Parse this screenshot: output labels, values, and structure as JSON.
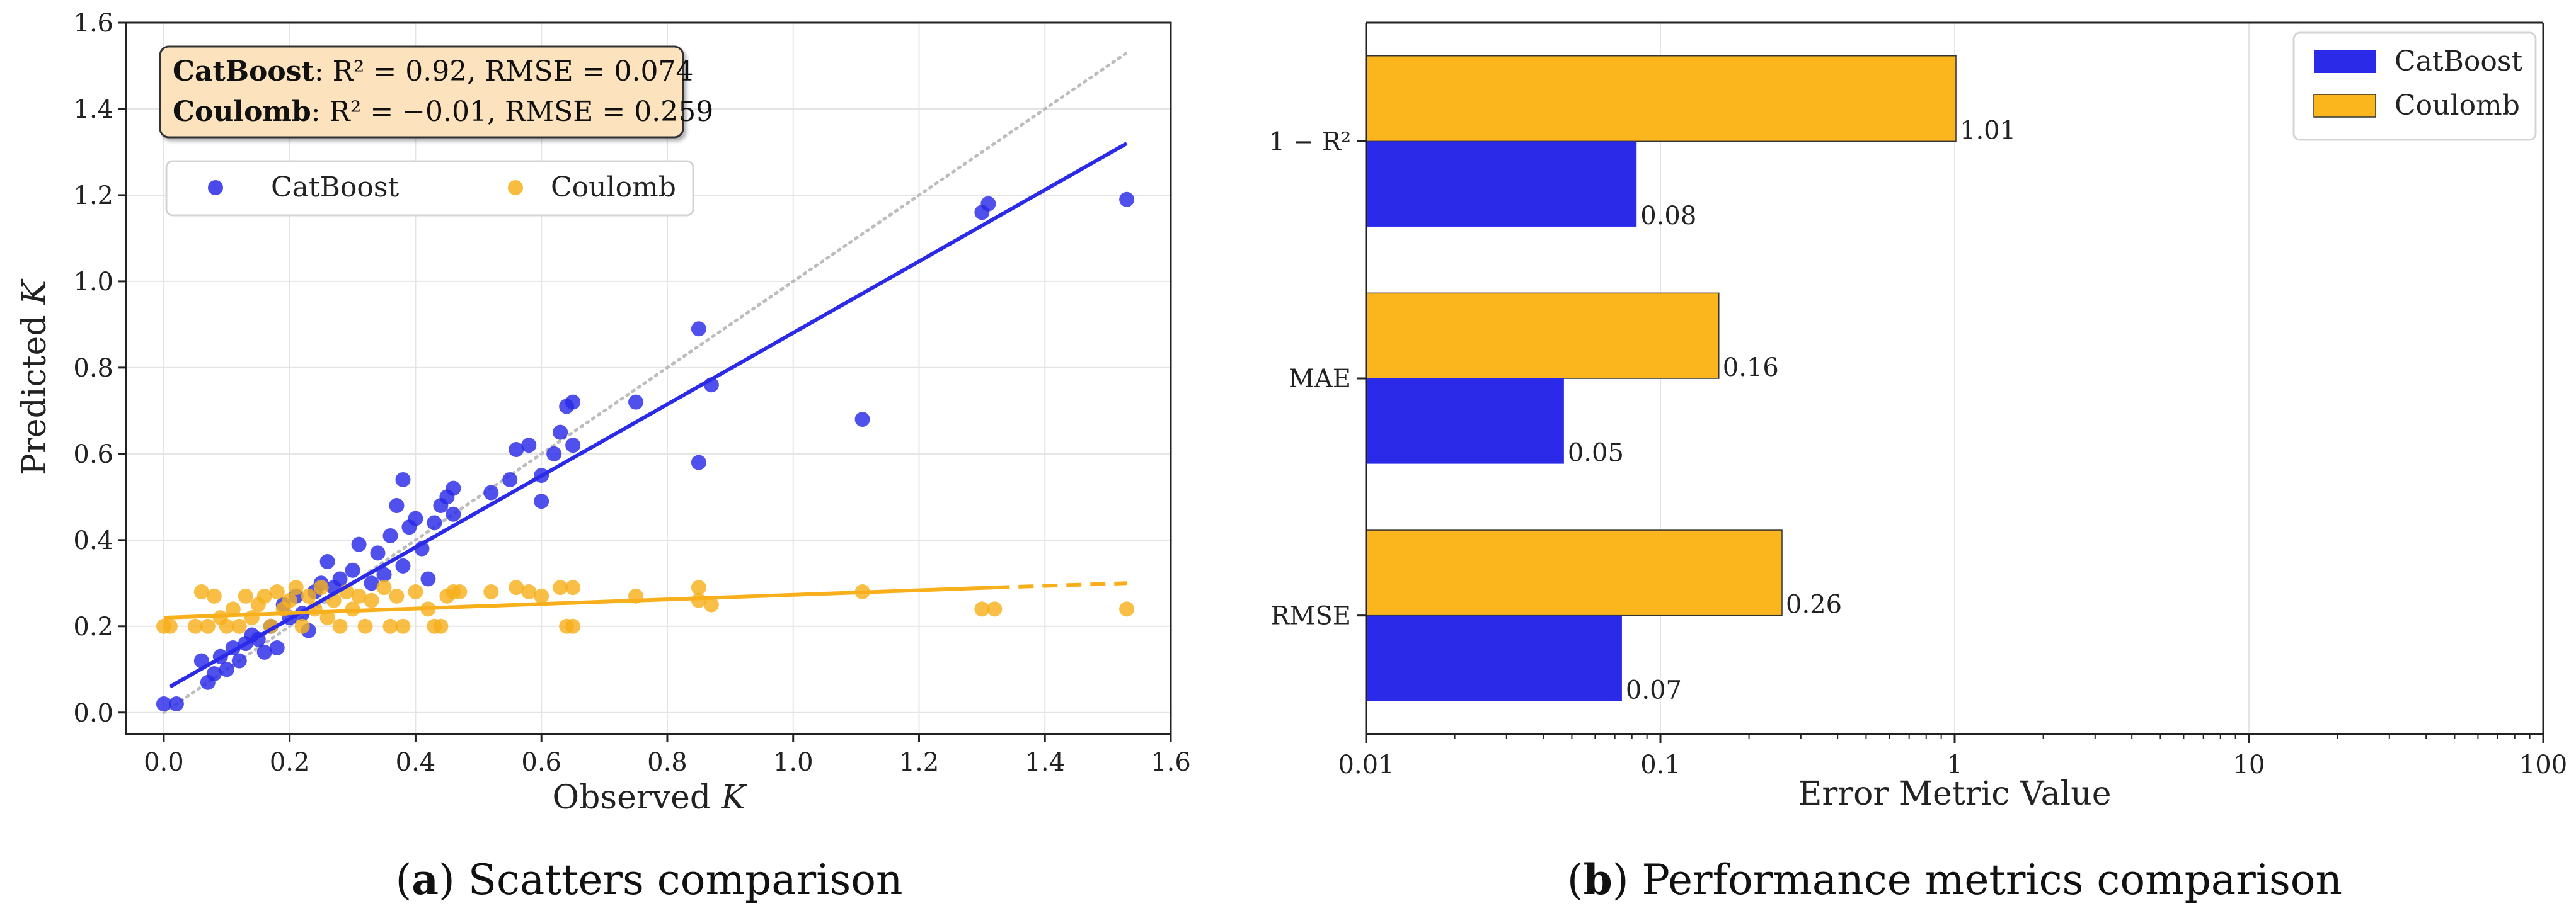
{
  "captions": {
    "a_letter": "a",
    "a_text": " Scatters comparison",
    "b_letter": "b",
    "b_text": " Performance metrics comparison"
  },
  "chart_data": [
    {
      "type": "scatter",
      "title": "",
      "xlabel": "Observed K",
      "ylabel": "Predicted K",
      "xlim": [
        -0.06,
        1.6
      ],
      "ylim": [
        -0.05,
        1.6
      ],
      "xticks": [
        "0.0",
        "0.2",
        "0.4",
        "0.6",
        "0.8",
        "1.0",
        "1.2",
        "1.4",
        "1.6"
      ],
      "yticks": [
        "0.0",
        "0.2",
        "0.4",
        "0.6",
        "0.8",
        "1.0",
        "1.2",
        "1.4",
        "1.6"
      ],
      "grid": true,
      "annotation": {
        "line1_model": "CatBoost",
        "line1_rest": ": R² = 0.92, RMSE = 0.074",
        "line2_model": "Coulomb",
        "line2_rest": ": R² = −0.01, RMSE = 0.259"
      },
      "legend": {
        "placement": "upper-left",
        "entries": [
          "CatBoost",
          "Coulomb"
        ]
      },
      "colors": {
        "CatBoost": "#2a2ae8",
        "Coulomb": "#f7b01c",
        "identity": "#bdbdbd"
      },
      "identity_line": {
        "x": [
          0.0,
          1.53
        ],
        "y": [
          0.0,
          1.53
        ]
      },
      "fits": [
        {
          "name": "CatBoost",
          "x": [
            0.01,
            1.53
          ],
          "y": [
            0.06,
            1.32
          ]
        },
        {
          "name": "Coulomb",
          "x": [
            0.0,
            1.32
          ],
          "y": [
            0.22,
            0.29
          ],
          "dashed_to": [
            1.53,
            0.3
          ]
        }
      ],
      "series": [
        {
          "name": "CatBoost",
          "points": [
            [
              0.0,
              0.02
            ],
            [
              0.02,
              0.02
            ],
            [
              0.06,
              0.12
            ],
            [
              0.07,
              0.07
            ],
            [
              0.08,
              0.09
            ],
            [
              0.09,
              0.13
            ],
            [
              0.1,
              0.1
            ],
            [
              0.11,
              0.15
            ],
            [
              0.12,
              0.12
            ],
            [
              0.13,
              0.16
            ],
            [
              0.14,
              0.18
            ],
            [
              0.15,
              0.17
            ],
            [
              0.16,
              0.14
            ],
            [
              0.17,
              0.2
            ],
            [
              0.18,
              0.15
            ],
            [
              0.19,
              0.25
            ],
            [
              0.2,
              0.22
            ],
            [
              0.21,
              0.27
            ],
            [
              0.22,
              0.23
            ],
            [
              0.23,
              0.19
            ],
            [
              0.24,
              0.28
            ],
            [
              0.25,
              0.3
            ],
            [
              0.26,
              0.35
            ],
            [
              0.27,
              0.29
            ],
            [
              0.28,
              0.31
            ],
            [
              0.3,
              0.33
            ],
            [
              0.31,
              0.39
            ],
            [
              0.33,
              0.3
            ],
            [
              0.34,
              0.37
            ],
            [
              0.35,
              0.32
            ],
            [
              0.36,
              0.41
            ],
            [
              0.37,
              0.48
            ],
            [
              0.38,
              0.34
            ],
            [
              0.38,
              0.54
            ],
            [
              0.39,
              0.43
            ],
            [
              0.4,
              0.45
            ],
            [
              0.41,
              0.38
            ],
            [
              0.42,
              0.31
            ],
            [
              0.43,
              0.44
            ],
            [
              0.44,
              0.48
            ],
            [
              0.45,
              0.5
            ],
            [
              0.46,
              0.46
            ],
            [
              0.46,
              0.52
            ],
            [
              0.52,
              0.51
            ],
            [
              0.55,
              0.54
            ],
            [
              0.56,
              0.61
            ],
            [
              0.58,
              0.62
            ],
            [
              0.6,
              0.55
            ],
            [
              0.6,
              0.49
            ],
            [
              0.62,
              0.6
            ],
            [
              0.63,
              0.65
            ],
            [
              0.64,
              0.71
            ],
            [
              0.65,
              0.62
            ],
            [
              0.65,
              0.72
            ],
            [
              0.75,
              0.72
            ],
            [
              0.85,
              0.89
            ],
            [
              0.85,
              0.58
            ],
            [
              0.87,
              0.76
            ],
            [
              1.11,
              0.68
            ],
            [
              1.3,
              1.16
            ],
            [
              1.31,
              1.18
            ],
            [
              1.53,
              1.19
            ]
          ]
        },
        {
          "name": "Coulomb",
          "points": [
            [
              0.0,
              0.2
            ],
            [
              0.01,
              0.2
            ],
            [
              0.05,
              0.2
            ],
            [
              0.06,
              0.28
            ],
            [
              0.07,
              0.2
            ],
            [
              0.08,
              0.27
            ],
            [
              0.09,
              0.22
            ],
            [
              0.1,
              0.2
            ],
            [
              0.11,
              0.24
            ],
            [
              0.12,
              0.2
            ],
            [
              0.13,
              0.27
            ],
            [
              0.14,
              0.22
            ],
            [
              0.15,
              0.25
            ],
            [
              0.16,
              0.27
            ],
            [
              0.17,
              0.2
            ],
            [
              0.18,
              0.28
            ],
            [
              0.19,
              0.24
            ],
            [
              0.2,
              0.26
            ],
            [
              0.21,
              0.29
            ],
            [
              0.22,
              0.2
            ],
            [
              0.23,
              0.27
            ],
            [
              0.24,
              0.24
            ],
            [
              0.25,
              0.29
            ],
            [
              0.26,
              0.22
            ],
            [
              0.27,
              0.26
            ],
            [
              0.28,
              0.2
            ],
            [
              0.29,
              0.28
            ],
            [
              0.3,
              0.24
            ],
            [
              0.31,
              0.27
            ],
            [
              0.32,
              0.2
            ],
            [
              0.33,
              0.26
            ],
            [
              0.35,
              0.29
            ],
            [
              0.36,
              0.2
            ],
            [
              0.37,
              0.27
            ],
            [
              0.38,
              0.2
            ],
            [
              0.4,
              0.28
            ],
            [
              0.42,
              0.24
            ],
            [
              0.43,
              0.2
            ],
            [
              0.44,
              0.2
            ],
            [
              0.45,
              0.27
            ],
            [
              0.46,
              0.28
            ],
            [
              0.47,
              0.28
            ],
            [
              0.52,
              0.28
            ],
            [
              0.56,
              0.29
            ],
            [
              0.58,
              0.28
            ],
            [
              0.6,
              0.27
            ],
            [
              0.63,
              0.29
            ],
            [
              0.64,
              0.2
            ],
            [
              0.65,
              0.2
            ],
            [
              0.65,
              0.29
            ],
            [
              0.75,
              0.27
            ],
            [
              0.85,
              0.29
            ],
            [
              0.85,
              0.26
            ],
            [
              0.87,
              0.25
            ],
            [
              1.11,
              0.28
            ],
            [
              1.3,
              0.24
            ],
            [
              1.32,
              0.24
            ],
            [
              1.53,
              0.24
            ]
          ]
        }
      ]
    },
    {
      "type": "bar",
      "orientation": "horizontal",
      "title": "",
      "xlabel": "Error Metric Value",
      "ylabel": "",
      "xscale": "log",
      "xlim": [
        0.01,
        100
      ],
      "xticks": [
        "0.01",
        "0.1",
        "1",
        "10",
        "100"
      ],
      "grid": true,
      "categories": [
        "1 − R²",
        "MAE",
        "RMSE"
      ],
      "legend": {
        "placement": "top-right",
        "entries": [
          "CatBoost",
          "Coulomb"
        ]
      },
      "colors": {
        "CatBoost": "#2a2ae8",
        "Coulomb": "#fbb61d"
      },
      "series": [
        {
          "name": "Coulomb",
          "values": [
            1.01,
            0.158,
            0.259
          ],
          "labels": [
            "1.01",
            "0.16",
            "0.26"
          ]
        },
        {
          "name": "CatBoost",
          "values": [
            0.083,
            0.047,
            0.074
          ],
          "labels": [
            "0.08",
            "0.05",
            "0.07"
          ]
        }
      ]
    }
  ]
}
